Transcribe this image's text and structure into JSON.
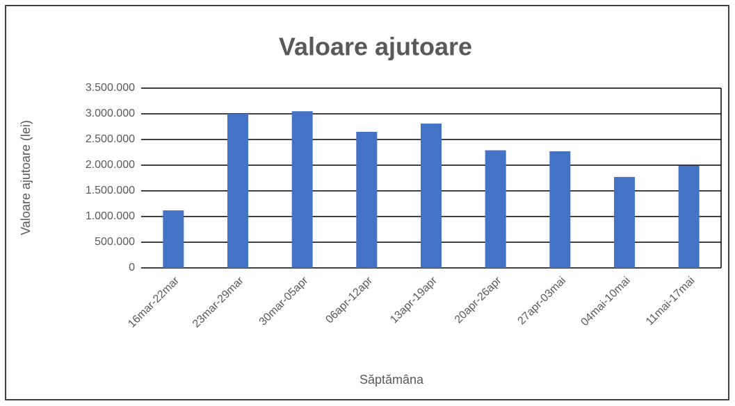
{
  "chart_data": {
    "type": "bar",
    "title": "Valoare ajutoare",
    "x_label": "Săptămâna",
    "y_label": "Valoare ajutoare (lei)",
    "categories": [
      "16mar-22mar",
      "23mar-29mar",
      "30mar-05apr",
      "06apr-12apr",
      "13apr-19apr",
      "20apr-26apr",
      "27apr-03mai",
      "04mai-10mai",
      "11mai-17mai"
    ],
    "values": [
      1120000,
      3000000,
      3050000,
      2650000,
      2810000,
      2290000,
      2270000,
      1770000,
      1990000
    ],
    "color": "#4472c4",
    "ylim": [
      0,
      3500000
    ],
    "yticks": [
      0,
      {
        "value": 500000,
        "label": "500.000"
      },
      {
        "value": 1000000,
        "label": "1.000.000"
      },
      {
        "value": 1500000,
        "label": "1.500.000"
      },
      {
        "value": 2000000,
        "label": "2.000.000"
      },
      {
        "value": 2500000,
        "label": "2.500.000"
      },
      {
        "value": 3000000,
        "label": "3.000.000"
      },
      {
        "value": 3500000,
        "label": "3.500.000"
      }
    ],
    "grid": true
  }
}
